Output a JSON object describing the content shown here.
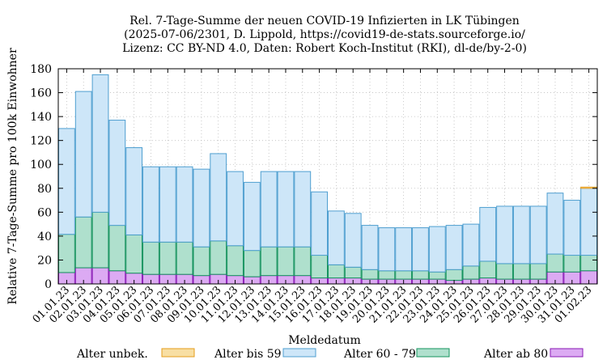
{
  "chart_data": {
    "type": "bar",
    "stacked": true,
    "title": [
      "Rel. 7-Tage-Summe der neuen COVID-19 Infizierten in LK Tübingen",
      "(2025-07-06/2301, D. Lippold, https://covid19-de-stats.sourceforge.io/",
      "Lizenz: CC BY-ND 4.0, Daten: Robert Koch-Institut (RKI), dl-de/by-2-0)"
    ],
    "xlabel": "Meldedatum",
    "ylabel": "Relative 7-Tage-Summe pro 100k Einwohner",
    "ylim": [
      0,
      180
    ],
    "yticks": [
      0,
      20,
      40,
      60,
      80,
      100,
      120,
      140,
      160,
      180
    ],
    "categories": [
      "01.01.23",
      "02.01.23",
      "03.01.23",
      "04.01.23",
      "05.01.23",
      "06.01.23",
      "07.01.23",
      "08.01.23",
      "09.01.23",
      "10.01.23",
      "11.01.23",
      "12.01.23",
      "13.01.23",
      "14.01.23",
      "15.01.23",
      "16.01.23",
      "17.01.23",
      "18.01.23",
      "19.01.23",
      "20.01.23",
      "21.01.23",
      "22.01.23",
      "23.01.23",
      "24.01.23",
      "25.01.23",
      "26.01.23",
      "27.01.23",
      "28.01.23",
      "29.01.23",
      "30.01.23",
      "31.01.23",
      "01.02.23"
    ],
    "grid": true,
    "legend_position": "bottom",
    "series": [
      {
        "name": "Alter ab 80",
        "fill": "#dcaaf3",
        "stroke": "#8a1ab6",
        "values": [
          9.5,
          13.5,
          13.5,
          11,
          9,
          8,
          8,
          8,
          7,
          8,
          7,
          6,
          7,
          7,
          7,
          5,
          5,
          5,
          4,
          4,
          4,
          4,
          4,
          3,
          4,
          5,
          4,
          4,
          4,
          10,
          10,
          11
        ]
      },
      {
        "name": "Alter 60 - 79",
        "fill": "#afe0cd",
        "stroke": "#15935e",
        "values": [
          32,
          42.5,
          46.5,
          38,
          32,
          27,
          27,
          27,
          24,
          28,
          25,
          22,
          24,
          24,
          24,
          19,
          11,
          9,
          8,
          7,
          7,
          7,
          6,
          9,
          11,
          14,
          13,
          13,
          13,
          15,
          14,
          13
        ]
      },
      {
        "name": "Alter bis 59",
        "fill": "#cde6f8",
        "stroke": "#4f9fd0",
        "values": [
          88.5,
          105,
          115,
          88,
          73,
          63,
          63,
          63,
          65,
          73,
          62,
          57,
          63,
          63,
          63,
          53,
          45,
          45,
          37,
          36,
          36,
          36,
          38,
          37,
          35,
          45,
          48,
          48,
          48,
          51,
          46,
          56
        ]
      },
      {
        "name": "Alter unbek.",
        "fill": "#f8dfa3",
        "stroke": "#e69c1b",
        "values": [
          0,
          0,
          0,
          0,
          0,
          0,
          0,
          0,
          0,
          0,
          0,
          0,
          0,
          0,
          0,
          0,
          0,
          0,
          0,
          0,
          0,
          0,
          0,
          0,
          0,
          0,
          0,
          0,
          0,
          0,
          0,
          1
        ]
      }
    ],
    "legend_order": [
      "Alter unbek.",
      "Alter bis 59",
      "Alter 60 - 79",
      "Alter ab 80"
    ]
  }
}
